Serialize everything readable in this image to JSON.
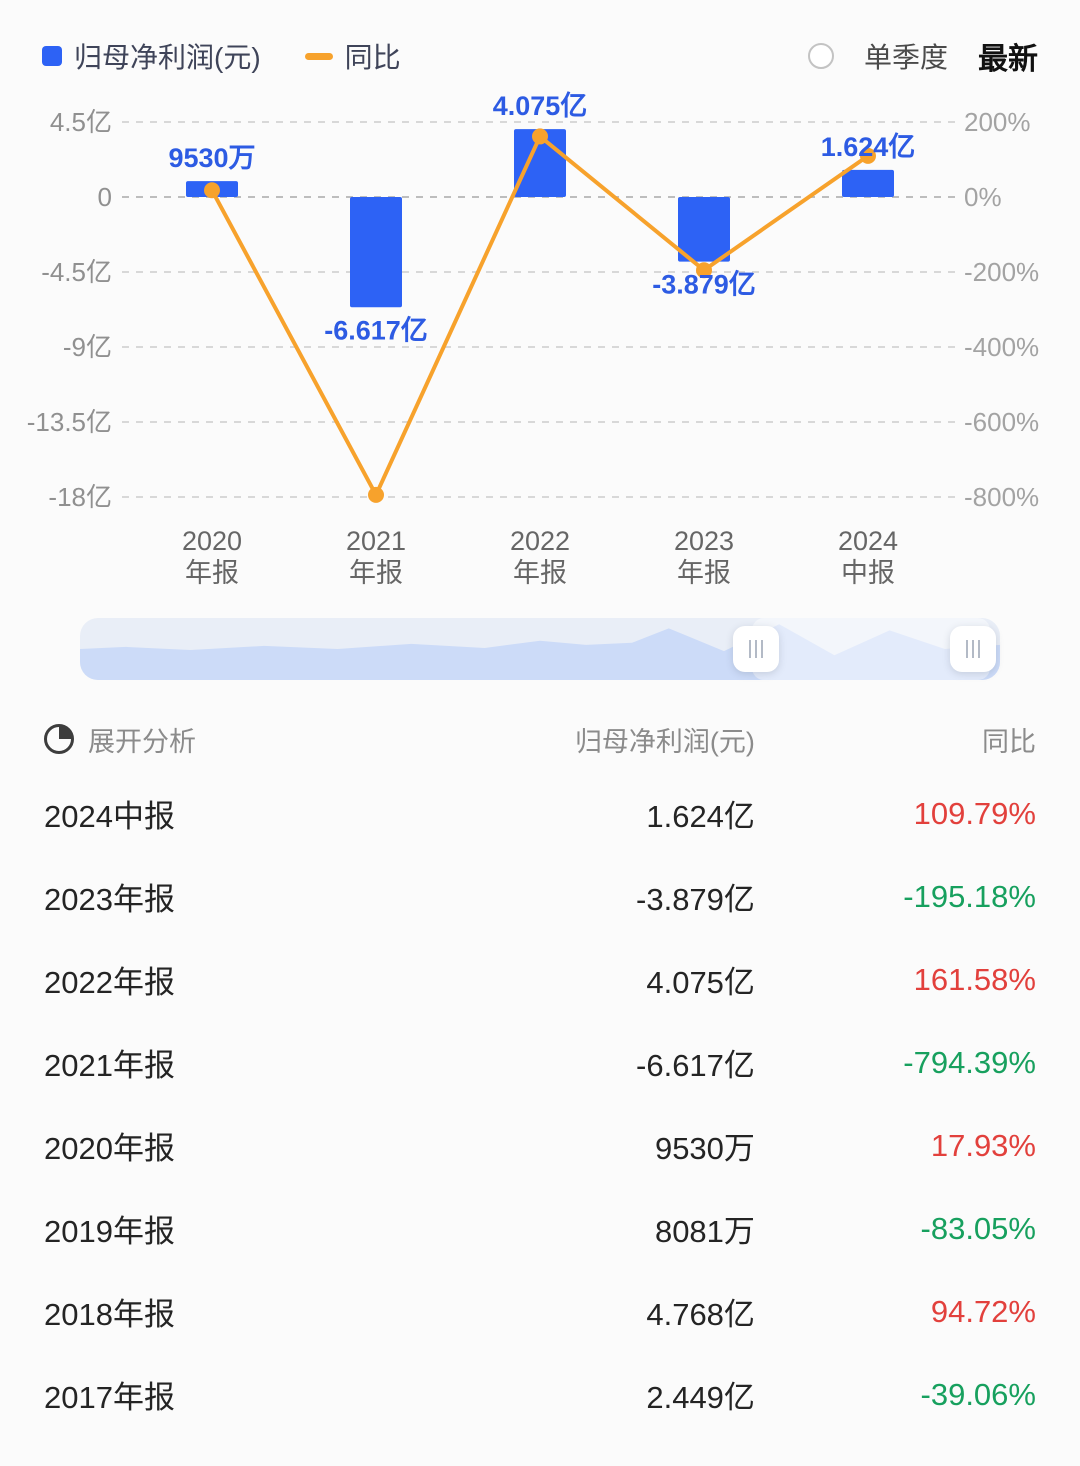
{
  "legend": {
    "bar_label": "归母净利润(元)",
    "line_label": "同比"
  },
  "controls": {
    "single_quarter": "单季度",
    "latest": "最新"
  },
  "colors": {
    "bar": "#2d62f5",
    "bar_label": "#2d5be3",
    "line": "#f7a22c",
    "up_red": "#e2403c",
    "down_green": "#17a05e",
    "grid": "#d8d8d8",
    "axis_text": "#909090",
    "right_axis_text": "#a3a3a3",
    "x_text": "#666666"
  },
  "chart_data": {
    "type": "bar",
    "categories": [
      {
        "line1": "2020",
        "line2": "年报"
      },
      {
        "line1": "2021",
        "line2": "年报"
      },
      {
        "line1": "2022",
        "line2": "年报"
      },
      {
        "line1": "2023",
        "line2": "年报"
      },
      {
        "line1": "2024",
        "line2": "中报"
      }
    ],
    "series": [
      {
        "name": "归母净利润(元)",
        "type": "bar",
        "unit": "亿",
        "values": [
          0.953,
          -6.617,
          4.075,
          -3.879,
          1.624
        ],
        "labels": [
          "9530万",
          "-6.617亿",
          "4.075亿",
          "-3.879亿",
          "1.624亿"
        ]
      },
      {
        "name": "同比",
        "type": "line",
        "unit": "%",
        "values": [
          17.93,
          -794.39,
          161.58,
          -195.18,
          109.79
        ]
      }
    ],
    "left_axis": {
      "ticks": [
        "4.5亿",
        "0",
        "-4.5亿",
        "-9亿",
        "-13.5亿",
        "-18亿"
      ],
      "values": [
        4.5,
        0,
        -4.5,
        -9,
        -13.5,
        -18
      ],
      "range": [
        -18,
        4.5
      ]
    },
    "right_axis": {
      "ticks": [
        "200%",
        "0%",
        "-200%",
        "-400%",
        "-600%",
        "-800%"
      ],
      "values": [
        200,
        0,
        -200,
        -400,
        -600,
        -800
      ],
      "range": [
        -800,
        200
      ]
    },
    "grid": "dashed",
    "legend_position": "top-left"
  },
  "table": {
    "analysis_label": "展开分析",
    "columns": [
      "归母净利润(元)",
      "同比"
    ],
    "rows": [
      {
        "period": "2024中报",
        "profit": "1.624亿",
        "yoy": "109.79%",
        "trend": "up"
      },
      {
        "period": "2023年报",
        "profit": "-3.879亿",
        "yoy": "-195.18%",
        "trend": "down"
      },
      {
        "period": "2022年报",
        "profit": "4.075亿",
        "yoy": "161.58%",
        "trend": "up"
      },
      {
        "period": "2021年报",
        "profit": "-6.617亿",
        "yoy": "-794.39%",
        "trend": "down"
      },
      {
        "period": "2020年报",
        "profit": "9530万",
        "yoy": "17.93%",
        "trend": "up"
      },
      {
        "period": "2019年报",
        "profit": "8081万",
        "yoy": "-83.05%",
        "trend": "down"
      },
      {
        "period": "2018年报",
        "profit": "4.768亿",
        "yoy": "94.72%",
        "trend": "up"
      },
      {
        "period": "2017年报",
        "profit": "2.449亿",
        "yoy": "-39.06%",
        "trend": "down"
      }
    ]
  }
}
